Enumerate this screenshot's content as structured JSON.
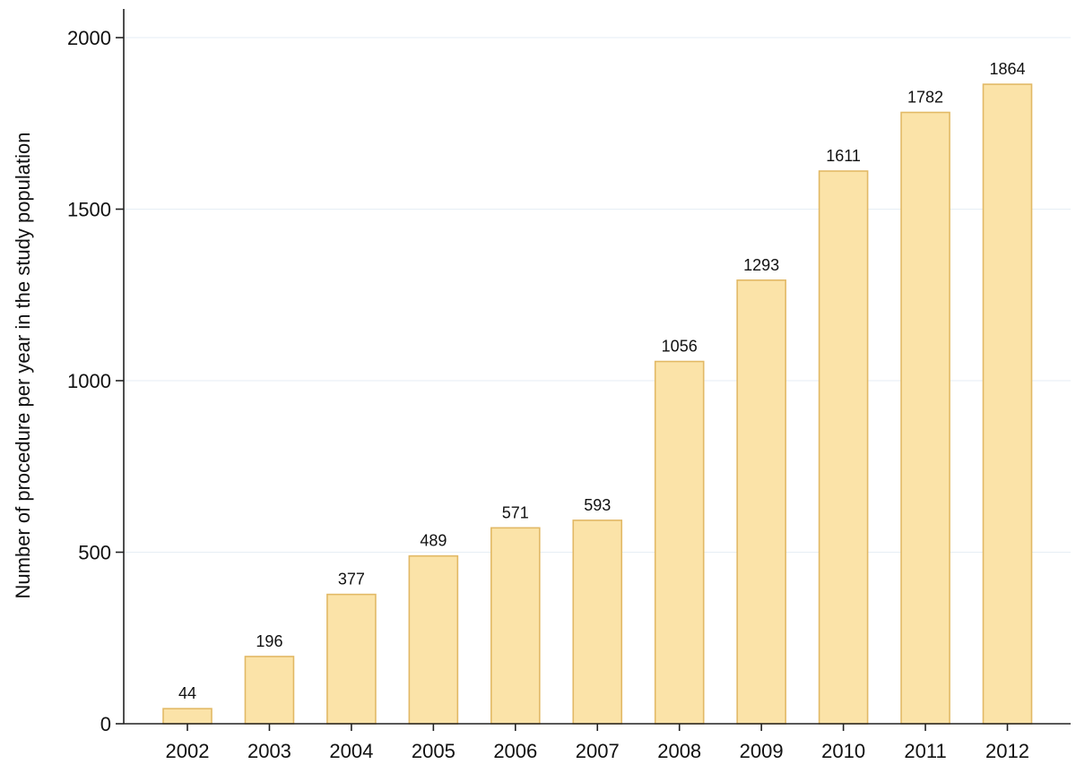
{
  "chart_data": {
    "type": "bar",
    "title": "",
    "xlabel": "",
    "ylabel": "Number of procedure per year in the study population",
    "categories": [
      "2002",
      "2003",
      "2004",
      "2005",
      "2006",
      "2007",
      "2008",
      "2009",
      "2010",
      "2011",
      "2012"
    ],
    "values": [
      44,
      196,
      377,
      489,
      571,
      593,
      1056,
      1293,
      1611,
      1782,
      1864
    ],
    "data_labels": [
      "44",
      "196",
      "377",
      "489",
      "571",
      "593",
      "1056",
      "1293",
      "1611",
      "1782",
      "1864"
    ],
    "ylim": [
      0,
      2000
    ],
    "yticks": [
      0,
      500,
      1000,
      1500,
      2000
    ],
    "ytick_labels": [
      "0",
      "500",
      "1000",
      "1500",
      "2000"
    ],
    "grid": true,
    "legend": "none",
    "colors": {
      "bar_fill": "#fbe3a8",
      "bar_stroke": "#e2b966",
      "gridline": "#e6eef5",
      "axis": "#222222",
      "text": "#111111"
    }
  }
}
